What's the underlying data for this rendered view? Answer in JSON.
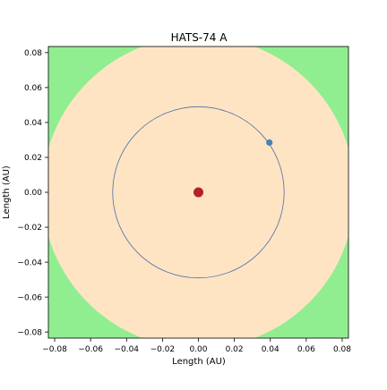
{
  "chart_data": {
    "type": "scatter",
    "title": "HATS-74 A",
    "xlabel": "Length (AU)",
    "ylabel": "Length (AU)",
    "xlim": [
      -0.0835,
      0.0835
    ],
    "ylim": [
      -0.0835,
      0.0835
    ],
    "xticks": [
      {
        "value": -0.08,
        "label": "−0.08"
      },
      {
        "value": -0.06,
        "label": "−0.06"
      },
      {
        "value": -0.04,
        "label": "−0.04"
      },
      {
        "value": -0.02,
        "label": "−0.02"
      },
      {
        "value": 0.0,
        "label": "0.00"
      },
      {
        "value": 0.02,
        "label": "0.02"
      },
      {
        "value": 0.04,
        "label": "0.04"
      },
      {
        "value": 0.06,
        "label": "0.06"
      },
      {
        "value": 0.08,
        "label": "0.08"
      }
    ],
    "yticks": [
      {
        "value": -0.08,
        "label": "−0.08"
      },
      {
        "value": -0.06,
        "label": "−0.06"
      },
      {
        "value": -0.04,
        "label": "−0.04"
      },
      {
        "value": -0.02,
        "label": "−0.02"
      },
      {
        "value": 0.0,
        "label": "0.00"
      },
      {
        "value": 0.02,
        "label": "0.02"
      },
      {
        "value": 0.04,
        "label": "0.04"
      },
      {
        "value": 0.06,
        "label": "0.06"
      },
      {
        "value": 0.08,
        "label": "0.08"
      }
    ],
    "grid": false,
    "background_color": "#90ee90",
    "zone": {
      "center": [
        0,
        0
      ],
      "radius": 0.087,
      "color": "#ffe4c4"
    },
    "orbit": {
      "center": [
        0,
        0
      ],
      "radius": 0.0477,
      "color": "#4a6fa5"
    },
    "star": {
      "x": 0,
      "y": 0,
      "color": "#b22222"
    },
    "planet": {
      "x": 0.0395,
      "y": 0.0285,
      "color": "#4682b4"
    }
  }
}
